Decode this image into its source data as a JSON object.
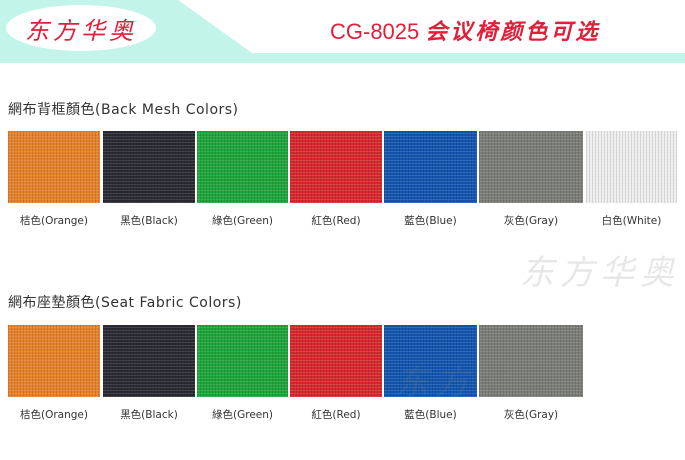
{
  "header": {
    "logo_text": "东方华奥",
    "model": "CG-8025",
    "title_cn": "会议椅颜色可选",
    "band_color": "#c2f4ea",
    "title_color": "#e0203a"
  },
  "back_mesh": {
    "title": "網布背框顏色(Back Mesh Colors)",
    "items": [
      {
        "label": "桔色(Orange)",
        "color": "#e8822a"
      },
      {
        "label": "黑色(Black)",
        "color": "#2a2a33"
      },
      {
        "label": "綠色(Green)",
        "color": "#1fa63a"
      },
      {
        "label": "紅色(Red)",
        "color": "#d8282c"
      },
      {
        "label": "藍色(Blue)",
        "color": "#1256b0"
      },
      {
        "label": "灰色(Gray)",
        "color": "#7b7d78"
      },
      {
        "label": "白色(White)",
        "color": "#eeeeee"
      }
    ]
  },
  "seat_fabric": {
    "title": "網布座墊顏色(Seat Fabric Colors)",
    "items": [
      {
        "label": "桔色(Orange)",
        "color": "#e8822a"
      },
      {
        "label": "黑色(Black)",
        "color": "#2a2a33"
      },
      {
        "label": "綠色(Green)",
        "color": "#1fa63a"
      },
      {
        "label": "紅色(Red)",
        "color": "#d8282c"
      },
      {
        "label": "藍色(Blue)",
        "color": "#1256b0"
      },
      {
        "label": "灰色(Gray)",
        "color": "#7b7d78"
      }
    ]
  },
  "watermark": "东方华奥"
}
